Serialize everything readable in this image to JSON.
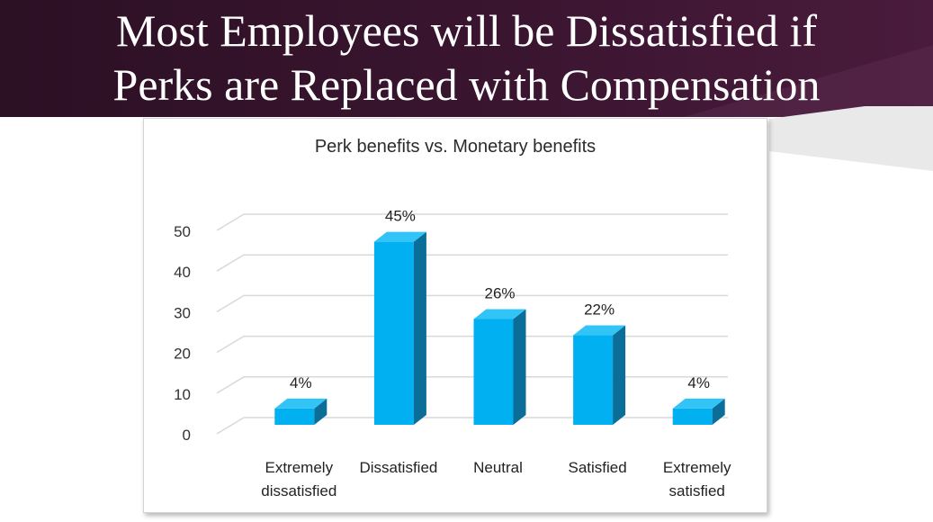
{
  "slide": {
    "title_line1": "Most Employees will be Dissatisfied if",
    "title_line2": "Perks are Replaced with Compensation"
  },
  "colors": {
    "banner_dark": "#2c1024",
    "banner_mid": "#4a1b3c",
    "bar_front": "#00b0f0",
    "bar_side": "#0a6e98",
    "bar_top": "#33c4f7",
    "gridline": "#d9d9d9"
  },
  "chart_data": {
    "type": "bar",
    "title": "Perk benefits vs. Monetary benefits",
    "categories": [
      "Extremely dissatisfied",
      "Dissatisfied",
      "Neutral",
      "Satisfied",
      "Extremely satisfied"
    ],
    "category_lines": [
      [
        "Extremely",
        "dissatisfied"
      ],
      [
        "Dissatisfied"
      ],
      [
        "Neutral"
      ],
      [
        "Satisfied"
      ],
      [
        "Extremely",
        "satisfied"
      ]
    ],
    "values": [
      4,
      45,
      26,
      22,
      4
    ],
    "data_labels": [
      "4%",
      "45%",
      "26%",
      "22%",
      "4%"
    ],
    "ylim": [
      0,
      50
    ],
    "yticks": [
      0,
      10,
      20,
      30,
      40,
      50
    ],
    "xlabel": "",
    "ylabel": "",
    "grid": true,
    "legend": "none"
  }
}
